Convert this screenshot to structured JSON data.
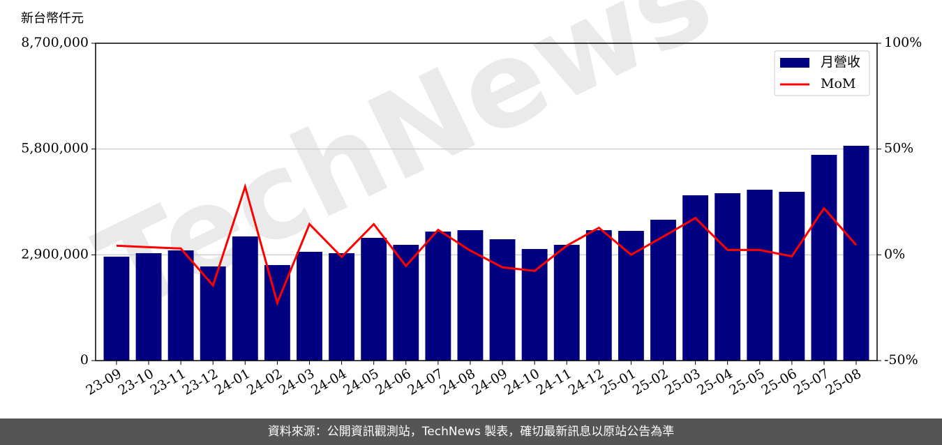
{
  "chart_data": {
    "type": "bar-line",
    "y_label": "新台幣仟元",
    "watermark": "TechNews",
    "footer": "資料來源：公開資訊觀測站，TechNews 製表，確切最新訊息以原站公告為準",
    "categories": [
      "23-09",
      "23-10",
      "23-11",
      "23-12",
      "24-01",
      "24-02",
      "24-03",
      "24-04",
      "24-05",
      "24-06",
      "24-07",
      "24-08",
      "24-09",
      "24-10",
      "24-11",
      "24-12",
      "25-01",
      "25-02",
      "25-03",
      "25-04",
      "25-05",
      "25-06",
      "25-07",
      "25-08"
    ],
    "series": [
      {
        "name": "月營收",
        "type": "bar",
        "color": "#000080",
        "values": [
          2850000,
          2945000,
          3021000,
          2581000,
          3404000,
          2620000,
          2983000,
          2945000,
          3365000,
          3174000,
          3537000,
          3576000,
          3327000,
          3059000,
          3174000,
          3576000,
          3556000,
          3862000,
          4532000,
          4589000,
          4685000,
          4627000,
          5641000,
          5889000
        ]
      },
      {
        "name": "MoM",
        "type": "line",
        "axis": "y2",
        "color": "#ff0000",
        "values": [
          4.3,
          3.6,
          3.0,
          -14.5,
          32.2,
          -22.7,
          14.5,
          -1.0,
          14.5,
          -5.3,
          11.8,
          2.0,
          -5.9,
          -7.6,
          4.3,
          12.8,
          0,
          8.6,
          17.4,
          2.3,
          2.3,
          -0.7,
          22.0,
          4.6
        ]
      }
    ],
    "ylim": [
      0,
      8700000
    ],
    "yticks": [
      0,
      {
        "value": 2900000,
        "label": "2,900,000"
      },
      {
        "value": 5800000,
        "label": "5,800,000"
      },
      {
        "value": 8700000,
        "label": "8,700,000"
      }
    ],
    "y2lim": [
      -50,
      100
    ],
    "y2ticks": [
      {
        "value": -50,
        "label": "-50%"
      },
      {
        "value": 0,
        "label": "0%"
      },
      {
        "value": 50,
        "label": "50%"
      },
      {
        "value": 100,
        "label": "100%"
      }
    ],
    "grid": true,
    "legend": "upper right"
  }
}
